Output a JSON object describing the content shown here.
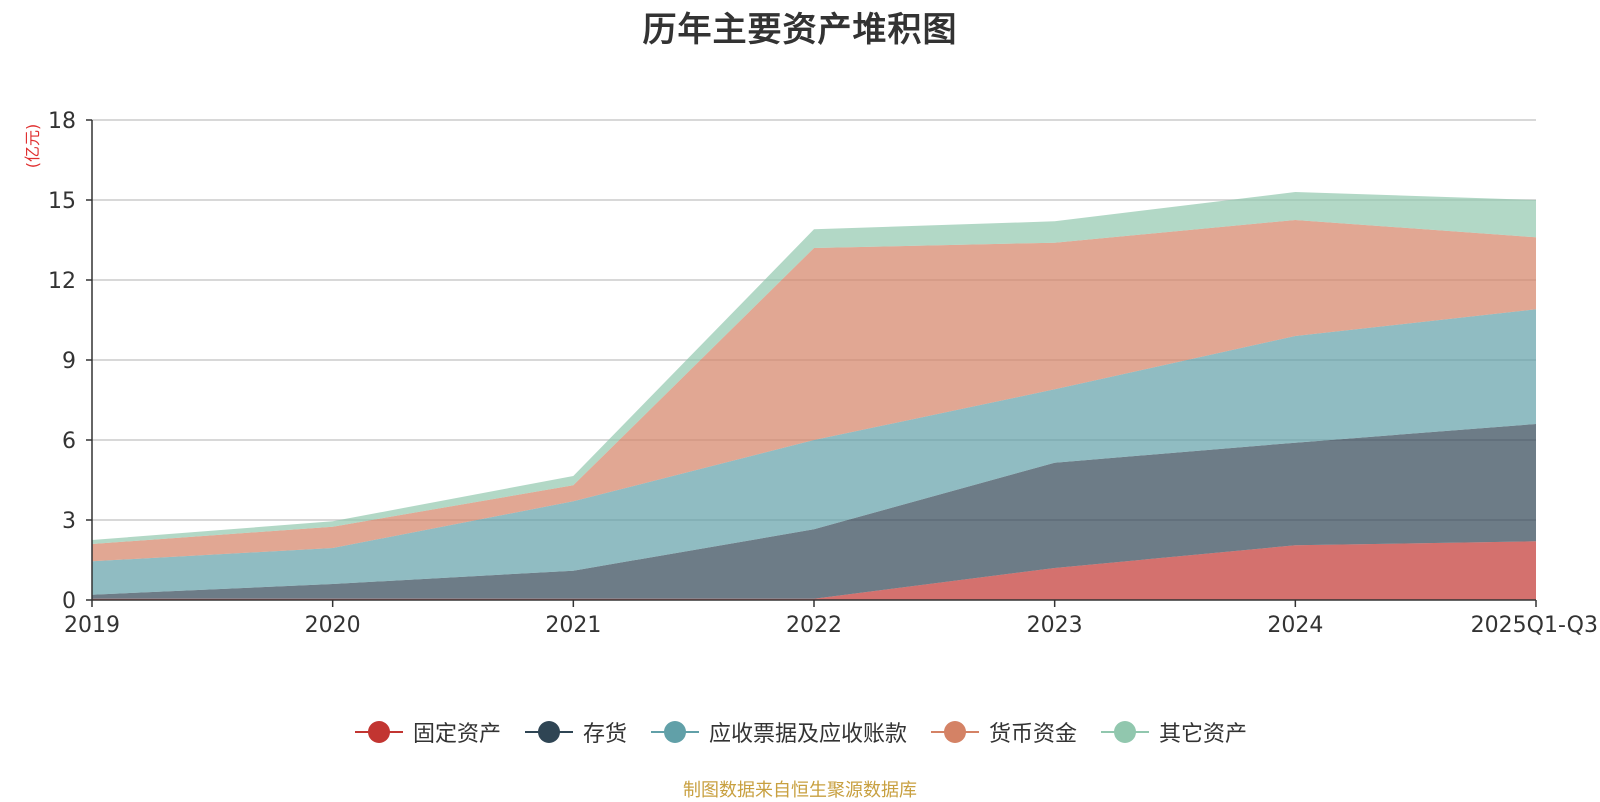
{
  "chart_data": {
    "type": "area",
    "stacked": true,
    "title": "历年主要资产堆积图",
    "ylabel": "(亿元)",
    "xlabel": "",
    "categories": [
      "2019",
      "2020",
      "2021",
      "2022",
      "2023",
      "2024",
      "2025Q1-Q3"
    ],
    "ylim": [
      0,
      18
    ],
    "yticks": [
      0,
      3,
      6,
      9,
      12,
      15,
      18
    ],
    "grid": true,
    "legend_position": "bottom-center",
    "series": [
      {
        "name": "固定资产",
        "color": "#c23531",
        "values": [
          0.05,
          0.05,
          0.05,
          0.05,
          1.2,
          2.05,
          2.2
        ]
      },
      {
        "name": "存货",
        "color": "#2f4554",
        "values": [
          0.15,
          0.55,
          1.05,
          2.6,
          3.95,
          3.85,
          4.4
        ]
      },
      {
        "name": "应收票据及应收账款",
        "color": "#61a0a8",
        "values": [
          1.25,
          1.35,
          2.6,
          3.35,
          2.75,
          4.0,
          4.3
        ]
      },
      {
        "name": "货币资金",
        "color": "#d48265",
        "values": [
          0.65,
          0.8,
          0.6,
          7.2,
          5.5,
          4.35,
          2.7
        ]
      },
      {
        "name": "其它资产",
        "color": "#91c7ae",
        "values": [
          0.15,
          0.2,
          0.35,
          0.7,
          0.8,
          1.05,
          1.4
        ]
      }
    ]
  },
  "footer": {
    "source": "制图数据来自恒生聚源数据库"
  }
}
